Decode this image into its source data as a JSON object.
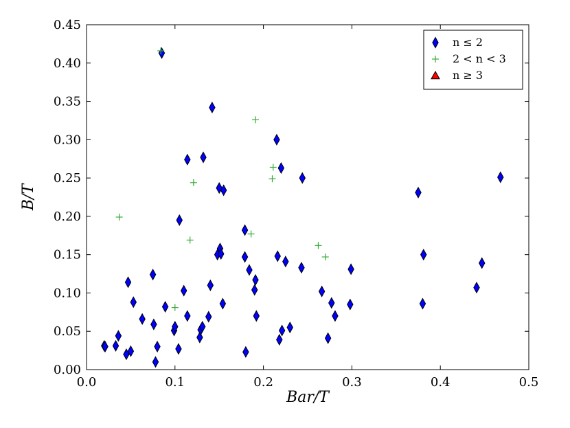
{
  "chart_data": {
    "type": "scatter",
    "xlabel": "Bar/T",
    "ylabel": "B/T",
    "xlim": [
      0.0,
      0.5
    ],
    "ylim": [
      0.0,
      0.45
    ],
    "xticks": [
      "0.0",
      "0.1",
      "0.2",
      "0.3",
      "0.4",
      "0.5"
    ],
    "yticks": [
      "0.00",
      "0.05",
      "0.10",
      "0.15",
      "0.20",
      "0.25",
      "0.30",
      "0.35",
      "0.40",
      "0.45"
    ],
    "grid": false,
    "legend": {
      "position": "top-right"
    },
    "series": [
      {
        "name": "n ≤ 2",
        "marker": "diamond",
        "color": "#0000ff",
        "edge": "#000000",
        "points": [
          [
            0.02,
            0.031
          ],
          [
            0.021,
            0.03
          ],
          [
            0.033,
            0.031
          ],
          [
            0.036,
            0.044
          ],
          [
            0.045,
            0.02
          ],
          [
            0.047,
            0.114
          ],
          [
            0.05,
            0.024
          ],
          [
            0.053,
            0.088
          ],
          [
            0.063,
            0.066
          ],
          [
            0.075,
            0.124
          ],
          [
            0.076,
            0.059
          ],
          [
            0.078,
            0.01
          ],
          [
            0.08,
            0.03
          ],
          [
            0.085,
            0.413
          ],
          [
            0.089,
            0.082
          ],
          [
            0.099,
            0.051
          ],
          [
            0.1,
            0.056
          ],
          [
            0.104,
            0.027
          ],
          [
            0.105,
            0.195
          ],
          [
            0.11,
            0.103
          ],
          [
            0.114,
            0.07
          ],
          [
            0.114,
            0.274
          ],
          [
            0.128,
            0.042
          ],
          [
            0.129,
            0.052
          ],
          [
            0.131,
            0.056
          ],
          [
            0.132,
            0.277
          ],
          [
            0.138,
            0.069
          ],
          [
            0.14,
            0.11
          ],
          [
            0.142,
            0.342
          ],
          [
            0.148,
            0.15
          ],
          [
            0.15,
            0.237
          ],
          [
            0.151,
            0.158
          ],
          [
            0.152,
            0.151
          ],
          [
            0.154,
            0.086
          ],
          [
            0.155,
            0.234
          ],
          [
            0.179,
            0.182
          ],
          [
            0.179,
            0.147
          ],
          [
            0.18,
            0.023
          ],
          [
            0.184,
            0.13
          ],
          [
            0.19,
            0.104
          ],
          [
            0.191,
            0.117
          ],
          [
            0.192,
            0.07
          ],
          [
            0.215,
            0.3
          ],
          [
            0.216,
            0.148
          ],
          [
            0.218,
            0.039
          ],
          [
            0.22,
            0.263
          ],
          [
            0.221,
            0.051
          ],
          [
            0.225,
            0.141
          ],
          [
            0.23,
            0.055
          ],
          [
            0.243,
            0.133
          ],
          [
            0.244,
            0.25
          ],
          [
            0.266,
            0.102
          ],
          [
            0.273,
            0.041
          ],
          [
            0.277,
            0.087
          ],
          [
            0.281,
            0.07
          ],
          [
            0.298,
            0.085
          ],
          [
            0.299,
            0.131
          ],
          [
            0.375,
            0.231
          ],
          [
            0.38,
            0.086
          ],
          [
            0.381,
            0.15
          ],
          [
            0.441,
            0.107
          ],
          [
            0.447,
            0.139
          ],
          [
            0.468,
            0.251
          ]
        ]
      },
      {
        "name": "2 < n < 3",
        "marker": "plus",
        "color": "#33aa33",
        "points": [
          [
            0.037,
            0.199
          ],
          [
            0.084,
            0.416
          ],
          [
            0.1,
            0.081
          ],
          [
            0.117,
            0.169
          ],
          [
            0.121,
            0.244
          ],
          [
            0.186,
            0.177
          ],
          [
            0.191,
            0.326
          ],
          [
            0.21,
            0.249
          ],
          [
            0.211,
            0.264
          ],
          [
            0.262,
            0.162
          ],
          [
            0.27,
            0.147
          ]
        ]
      },
      {
        "name": "n ≥ 3",
        "marker": "triangle",
        "color": "#ff0000",
        "edge": "#000000",
        "points": []
      }
    ]
  }
}
